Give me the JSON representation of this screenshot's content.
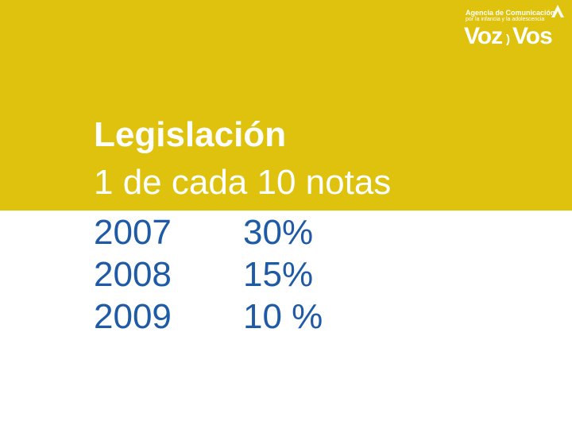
{
  "brand": {
    "line1": "Agencia de Comunicación",
    "line2": "por la infancia y la adolescencia",
    "word_left": "Voz",
    "separator": ")",
    "word_right": "Vos"
  },
  "slide": {
    "title": "Legislación",
    "subtitle": "1 de cada 10 notas"
  },
  "stats": [
    {
      "year": "2007",
      "value": "30%"
    },
    {
      "year": "2008",
      "value": "15%"
    },
    {
      "year": "2009",
      "value": "10 %"
    }
  ],
  "colors": {
    "band": "#dfc20d",
    "title_text": "#ffffff",
    "stats_text": "#1f5aa6",
    "background": "#ffffff"
  }
}
